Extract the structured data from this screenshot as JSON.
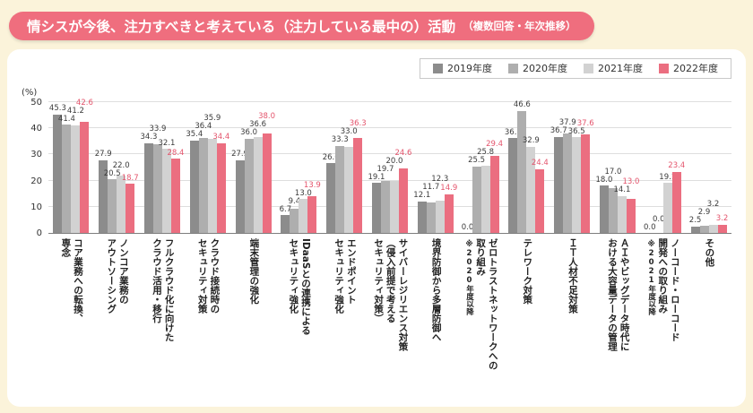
{
  "title": {
    "main": "情シスが今後、注力すべきと考えている（注力している最中の）活動",
    "sub": "（複数回答・年次推移）"
  },
  "colors": {
    "background": "#fbf3da",
    "card": "#ffffff",
    "title_pill": "#ef6e7e",
    "accent_value_label": "#e4546c",
    "grid": "#dedede"
  },
  "chart_data": {
    "type": "bar",
    "title": "情シスが今後、注力すべきと考えている（注力している最中の）活動（複数回答・年次推移）",
    "unit": "(%)",
    "ylabel": "(%)",
    "ylim": [
      0,
      50
    ],
    "yticks": [
      0,
      10,
      20,
      30,
      40,
      50
    ],
    "grid": true,
    "legend_position": "top-right",
    "categories": [
      {
        "label": "コア業務への転換、\n専念"
      },
      {
        "label": "ノンコア業務の\nアウトソーシング"
      },
      {
        "label": "フルクラウド化に向けた\nクラウド活用・移行"
      },
      {
        "label": "クラウド接続時の\nセキュリティ対策"
      },
      {
        "label": "端末管理の強化"
      },
      {
        "label": "IDaaSとの連携による\nセキュリティ強化"
      },
      {
        "label": "エンドポイント\nセキュリティ強化"
      },
      {
        "label": "サイバーレジリエンス対策\n（侵入前提で考える\nセキュリティ対策）"
      },
      {
        "label": "境界防御から多層防御へ"
      },
      {
        "label": "ゼロトラストネットワークへの\n取り組み",
        "note": "※2020年度以降"
      },
      {
        "label": "テレワーク対策"
      },
      {
        "label": "ＩＴ人材不足対策"
      },
      {
        "label": "ＡＩやビッグデータ時代に\nおける大容量データの管理"
      },
      {
        "label": "ノーコード・ローコード\n開発への取り組み",
        "note": "※2021年度以降"
      },
      {
        "label": "その他"
      }
    ],
    "series": [
      {
        "name": "2019年度",
        "color": "#8c8c8c",
        "values": [
          45.3,
          27.9,
          34.3,
          35.4,
          27.9,
          6.7,
          26.6,
          19.1,
          12.1,
          0.0,
          36.3,
          36.7,
          18.0,
          0.0,
          2.5
        ]
      },
      {
        "name": "2020年度",
        "color": "#aeaeae",
        "values": [
          41.4,
          20.5,
          33.9,
          36.4,
          36.0,
          9.4,
          33.3,
          19.7,
          11.7,
          25.5,
          46.6,
          37.9,
          17.0,
          0.0,
          2.9
        ]
      },
      {
        "name": "2021年度",
        "color": "#d2d2d2",
        "values": [
          41.2,
          22.0,
          32.1,
          35.9,
          36.6,
          13.0,
          33.0,
          20.0,
          12.3,
          25.8,
          32.9,
          36.5,
          14.1,
          19.1,
          3.2
        ]
      },
      {
        "name": "2022年度",
        "color": "#eb6e80",
        "values": [
          42.6,
          18.7,
          28.4,
          34.4,
          38.0,
          13.9,
          36.3,
          24.6,
          14.9,
          29.4,
          24.4,
          37.6,
          13.0,
          23.4,
          3.2
        ]
      }
    ]
  }
}
